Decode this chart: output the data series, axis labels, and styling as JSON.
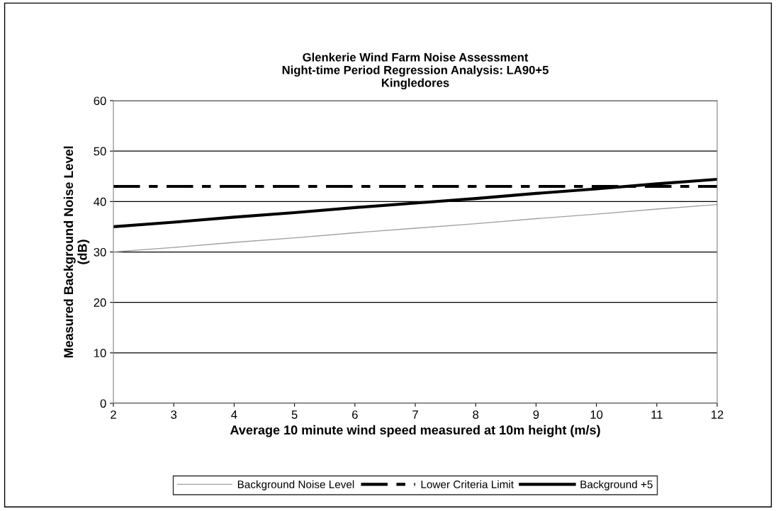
{
  "chart_data": {
    "type": "line",
    "title": "Glenkerie Wind Farm Noise Assessment\nNight-time Period Regression Analysis: LA90+5\nKingledores",
    "xlabel": "Average 10 minute wind speed measured at 10m height (m/s)",
    "ylabel": "Measured Background Noise Level\n(dB)",
    "x": [
      2,
      3,
      4,
      5,
      6,
      7,
      8,
      9,
      10,
      11,
      12
    ],
    "series": [
      {
        "name": "Background Noise Level",
        "color": "#a0a0a0",
        "line_style": "solid",
        "values": [
          30,
          30.9,
          31.9,
          32.8,
          33.8,
          34.7,
          35.6,
          36.6,
          37.5,
          38.5,
          39.4
        ]
      },
      {
        "name": "Lower Criteria Limit",
        "color": "#000000",
        "line_style": "dashed",
        "values": [
          43,
          43,
          43,
          43,
          43,
          43,
          43,
          43,
          43,
          43,
          43
        ]
      },
      {
        "name": "Background +5",
        "color": "#000000",
        "line_style": "solid",
        "values": [
          35,
          35.9,
          36.9,
          37.8,
          38.8,
          39.7,
          40.6,
          41.6,
          42.5,
          43.5,
          44.4
        ]
      }
    ],
    "xlim": [
      2,
      12
    ],
    "xticks": [
      2,
      3,
      4,
      5,
      6,
      7,
      8,
      9,
      10,
      11,
      12
    ],
    "ylim": [
      0,
      60
    ],
    "yticks": [
      0,
      10,
      20,
      30,
      40,
      50,
      60
    ],
    "grid": "y",
    "legend": "bottom",
    "marker": "none"
  }
}
